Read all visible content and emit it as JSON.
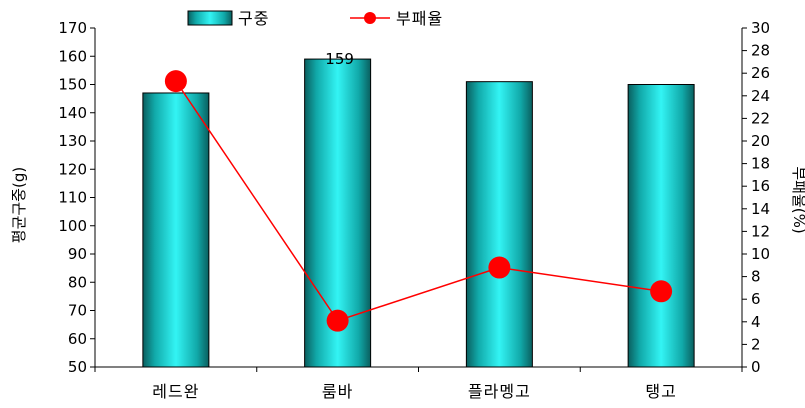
{
  "chart_data": {
    "type": "bar+line",
    "categories": [
      "레드완",
      "룸바",
      "플라멩고",
      "탱고"
    ],
    "series": [
      {
        "name": "구중",
        "type": "bar",
        "axis": "left",
        "values": [
          147,
          159,
          151,
          150
        ],
        "color": "#19c7c7"
      },
      {
        "name": "부패율",
        "type": "line",
        "axis": "right",
        "values": [
          25.3,
          4.1,
          8.8,
          6.7
        ],
        "color": "#ff0000"
      }
    ],
    "data_labels": [
      {
        "category": "룸바",
        "text": "159"
      }
    ],
    "ylabel_left": "평균구중(g)",
    "ylabel_right": "부패율(%)",
    "ylim_left": [
      50,
      170
    ],
    "yticks_left": [
      50,
      60,
      70,
      80,
      90,
      100,
      110,
      120,
      130,
      140,
      150,
      160,
      170
    ],
    "ylim_right": [
      0,
      30
    ],
    "yticks_right": [
      0,
      2,
      4,
      6,
      8,
      10,
      12,
      14,
      16,
      18,
      20,
      22,
      24,
      26,
      28,
      30
    ],
    "grid": false,
    "legend_position": "top"
  }
}
